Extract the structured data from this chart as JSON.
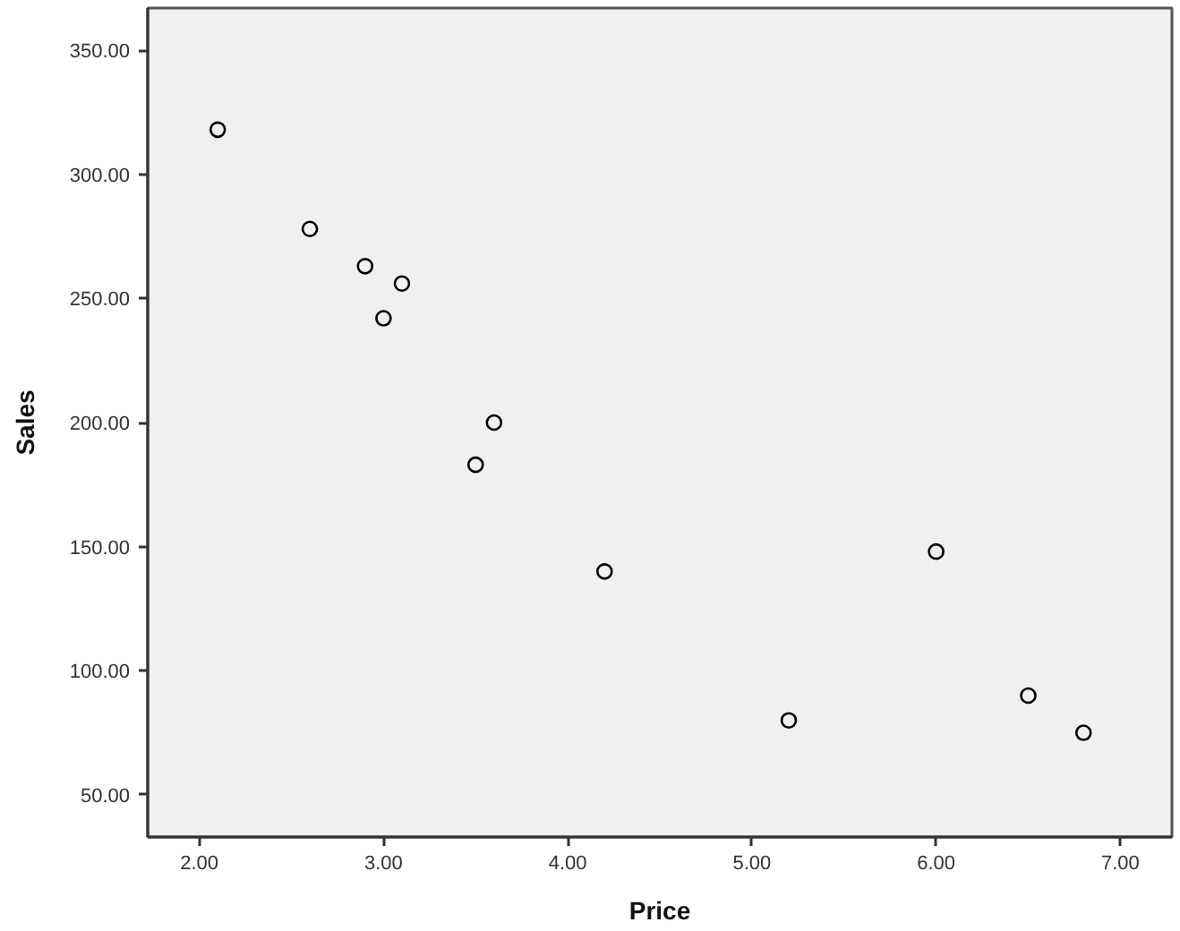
{
  "chart_data": {
    "type": "scatter",
    "xlabel": "Price",
    "ylabel": "Sales",
    "x": [
      2.1,
      2.6,
      2.9,
      3.1,
      3.0,
      3.6,
      3.5,
      4.2,
      5.2,
      6.0,
      6.5,
      6.8
    ],
    "values": [
      318,
      278,
      263,
      256,
      242,
      200,
      183,
      140,
      80,
      148,
      90,
      75
    ],
    "color": "#000000",
    "marker": "circle",
    "grid": false,
    "xlim": [
      1.72,
      7.28
    ],
    "ylim": [
      33,
      367
    ],
    "xticks": [
      {
        "value": 2,
        "label": "2.00"
      },
      {
        "value": 3,
        "label": "3.00"
      },
      {
        "value": 4,
        "label": "4.00"
      },
      {
        "value": 5,
        "label": "5.00"
      },
      {
        "value": 6,
        "label": "6.00"
      },
      {
        "value": 7,
        "label": "7.00"
      }
    ],
    "yticks": [
      {
        "value": 50,
        "label": "50.00"
      },
      {
        "value": 100,
        "label": "100.00"
      },
      {
        "value": 150,
        "label": "150.00"
      },
      {
        "value": 200,
        "label": "200.00"
      },
      {
        "value": 250,
        "label": "250.00"
      },
      {
        "value": 300,
        "label": "300.00"
      },
      {
        "value": 350,
        "label": "350.00"
      }
    ]
  }
}
